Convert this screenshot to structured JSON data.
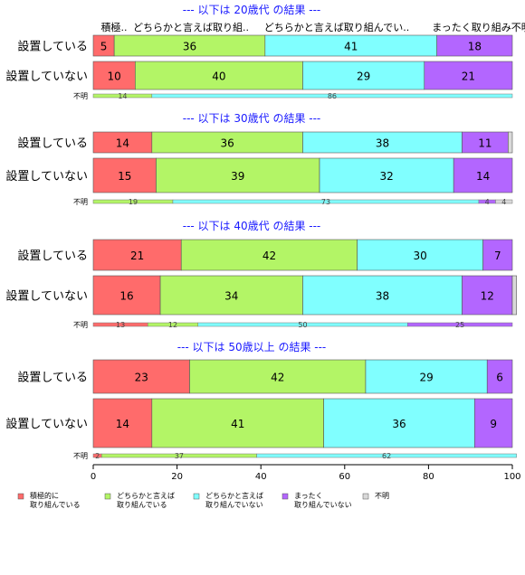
{
  "chart_data": {
    "type": "bar",
    "orientation": "horizontal",
    "stacked": true,
    "xlim": [
      0,
      100
    ],
    "xticks": [
      0,
      20,
      40,
      60,
      80,
      100
    ],
    "categories": [
      "設置している",
      "設置していない"
    ],
    "unknown_label": "不明",
    "colors": {
      "積極的に取り組んでいる": "#ff6b6b",
      "どちらかと言えば取り組んでいる": "#b3f566",
      "どちらかと言えば取り組んでいない": "#80ffff",
      "まったく取り組んでいない": "#b366ff",
      "不明": "#d9d9d9"
    },
    "top_labels": [
      "積極..",
      "どちらかと言えば取り組..",
      "どちらかと言えば取り組んでい..",
      "まったく取り組み不明"
    ],
    "legend": [
      {
        "line1": "積極的に",
        "line2": "取り組んでいる"
      },
      {
        "line1": "どちらかと言えば",
        "line2": "取り組んでいる"
      },
      {
        "line1": "どちらかと言えば",
        "line2": "取り組んでいない"
      },
      {
        "line1": "まったく",
        "line2": "取り組んでいない"
      },
      {
        "line1": "不明",
        "line2": ""
      }
    ],
    "panels": [
      {
        "title": "--- 以下は 20歳代 の結果 ---",
        "rows": [
          {
            "category": "設置している",
            "values": [
              5,
              36,
              41,
              18,
              0
            ]
          },
          {
            "category": "設置していない",
            "values": [
              10,
              40,
              29,
              21,
              0
            ]
          }
        ],
        "unknown_row": {
          "values": [
            0,
            14,
            86,
            0,
            0
          ],
          "labels": [
            "",
            "14",
            "86",
            "",
            ""
          ]
        }
      },
      {
        "title": "--- 以下は 30歳代 の結果 ---",
        "rows": [
          {
            "category": "設置している",
            "values": [
              14,
              36,
              38,
              11,
              1
            ]
          },
          {
            "category": "設置していない",
            "values": [
              15,
              39,
              32,
              14,
              0
            ]
          }
        ],
        "unknown_row": {
          "values": [
            0,
            19,
            73,
            4,
            4
          ],
          "labels": [
            "",
            "19",
            "73",
            "4",
            "4"
          ]
        }
      },
      {
        "title": "--- 以下は 40歳代 の結果 ---",
        "rows": [
          {
            "category": "設置している",
            "values": [
              21,
              42,
              30,
              7,
              0
            ]
          },
          {
            "category": "設置していない",
            "values": [
              16,
              34,
              38,
              12,
              1
            ]
          }
        ],
        "unknown_row": {
          "values": [
            13,
            12,
            50,
            25,
            0
          ],
          "labels": [
            "13",
            "12",
            "50",
            "25",
            ""
          ]
        }
      },
      {
        "title": "--- 以下は 50歳以上 の結果 ---",
        "rows": [
          {
            "category": "設置している",
            "values": [
              23,
              42,
              29,
              6,
              0
            ]
          },
          {
            "category": "設置していない",
            "values": [
              14,
              41,
              36,
              9,
              0
            ]
          }
        ],
        "unknown_row": {
          "values": [
            2,
            37,
            62,
            0,
            0
          ],
          "labels": [
            "2",
            "37",
            "62",
            "",
            ""
          ]
        }
      }
    ]
  }
}
